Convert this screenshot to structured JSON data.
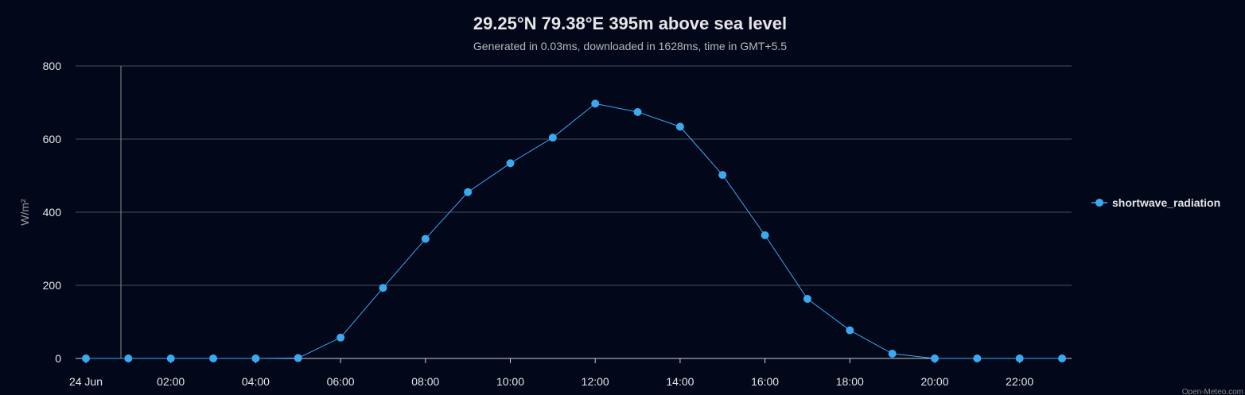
{
  "chart_data": {
    "type": "line",
    "title": "29.25°N 79.38°E 395m above sea level",
    "subtitle": "Generated in 0.03ms, downloaded in 1628ms, time in GMT+5.5",
    "ylabel": "W/m²",
    "xlabel": "",
    "ylim": [
      0,
      800
    ],
    "y_ticks": [
      "0",
      "200",
      "400",
      "600",
      "800"
    ],
    "x_tick_labels": [
      "24 Jun",
      "02:00",
      "04:00",
      "06:00",
      "08:00",
      "10:00",
      "12:00",
      "14:00",
      "16:00",
      "18:00",
      "20:00",
      "22:00"
    ],
    "x": [
      "00:00",
      "01:00",
      "02:00",
      "03:00",
      "04:00",
      "05:00",
      "06:00",
      "07:00",
      "08:00",
      "09:00",
      "10:00",
      "11:00",
      "12:00",
      "13:00",
      "14:00",
      "15:00",
      "16:00",
      "17:00",
      "18:00",
      "19:00",
      "20:00",
      "21:00",
      "22:00",
      "23:00"
    ],
    "series": [
      {
        "name": "shortwave_radiation",
        "color": "#3ba9f0",
        "values": [
          0,
          0,
          0,
          0,
          0,
          1,
          57,
          193,
          327,
          455,
          534,
          604,
          697,
          674,
          634,
          502,
          337,
          163,
          77,
          13,
          0,
          0,
          0,
          0
        ]
      }
    ],
    "grid": true,
    "legend_position": "right",
    "credits": "Open-Meteo.com"
  }
}
